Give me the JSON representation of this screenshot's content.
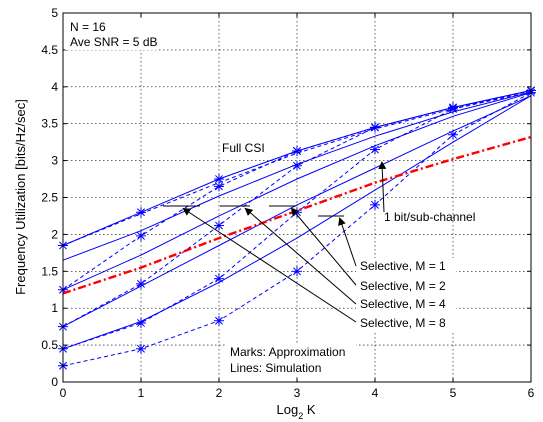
{
  "chart_data": {
    "type": "line",
    "xlabel": "Log",
    "xlabel_subscript": "2",
    "xlabel_suffix": " K",
    "ylabel": "Frequency Utilization [bits/Hz/sec]",
    "xlim": [
      0,
      6
    ],
    "ylim": [
      0,
      5
    ],
    "xticks": [
      0,
      1,
      2,
      3,
      4,
      5,
      6
    ],
    "yticks": [
      0,
      0.5,
      1,
      1.5,
      2,
      2.5,
      3,
      3.5,
      4,
      4.5,
      5
    ],
    "ytick_labels": [
      "0",
      "0.5",
      "1",
      "1.5",
      "2",
      "2.5",
      "3",
      "3.5",
      "4",
      "4.5",
      "5"
    ],
    "grid": true,
    "annotations": {
      "params_line1": "N = 16",
      "params_line2": "Ave SNR = 5 dB",
      "full_csi": "Full CSI",
      "one_bit": "1 bit/sub-channel",
      "sel_m1": "Selective, M = 1",
      "sel_m2": "Selective, M = 2",
      "sel_m4": "Selective, M = 4",
      "sel_m8": "Selective, M = 8",
      "marks_note": "Marks: Approximation",
      "lines_note": "Lines: Simulation"
    },
    "colors": {
      "series": "#0000ff",
      "one_bit": "#ff0000",
      "grid": "#000000"
    },
    "series": [
      {
        "x": [
          0,
          1,
          2,
          3,
          4,
          5,
          6
        ],
        "y": [
          1.85,
          2.3,
          2.75,
          3.13,
          3.45,
          3.72,
          3.95
        ],
        "style": "solid",
        "markers": true
      },
      {
        "x": [
          0,
          1,
          2,
          3,
          4,
          5,
          6
        ],
        "y": [
          1.85,
          2.28,
          2.7,
          3.1,
          3.43,
          3.7,
          3.93
        ],
        "style": "dashed",
        "markers": false
      },
      {
        "x": [
          0,
          1,
          2,
          3,
          4,
          5,
          6
        ],
        "y": [
          1.65,
          2.05,
          2.52,
          2.95,
          3.33,
          3.66,
          3.93
        ],
        "style": "solid",
        "markers": false
      },
      {
        "x": [
          0,
          1,
          2,
          3,
          4,
          5,
          6
        ],
        "y": [
          1.25,
          1.98,
          2.65,
          3.13,
          3.45,
          3.72,
          3.95
        ],
        "style": "dashed",
        "markers": true
      },
      {
        "x": [
          0,
          1,
          2,
          3,
          4,
          5,
          6
        ],
        "y": [
          1.25,
          1.72,
          2.25,
          2.75,
          3.2,
          3.6,
          3.92
        ],
        "style": "solid",
        "markers": false
      },
      {
        "x": [
          0,
          1,
          2,
          3,
          4,
          5,
          6
        ],
        "y": [
          0.75,
          1.33,
          2.12,
          2.93,
          3.45,
          3.72,
          3.95
        ],
        "style": "dashed",
        "markers": true
      },
      {
        "x": [
          0,
          1,
          2,
          3,
          4,
          5,
          6
        ],
        "y": [
          0.75,
          1.3,
          1.85,
          2.4,
          2.9,
          3.4,
          3.88
        ],
        "style": "solid",
        "markers": false
      },
      {
        "x": [
          0,
          1,
          2,
          3,
          4,
          5,
          6
        ],
        "y": [
          0.45,
          0.8,
          1.4,
          2.3,
          3.15,
          3.7,
          3.95
        ],
        "style": "dashed",
        "markers": true
      },
      {
        "x": [
          0,
          1,
          2,
          3,
          4,
          5,
          6
        ],
        "y": [
          0.45,
          0.82,
          1.35,
          1.95,
          2.6,
          3.25,
          3.88
        ],
        "style": "solid",
        "markers": false
      },
      {
        "x": [
          0,
          1,
          2,
          3,
          4,
          5,
          6
        ],
        "y": [
          0.22,
          0.45,
          0.83,
          1.5,
          2.4,
          3.35,
          3.92
        ],
        "style": "dashed",
        "markers": true
      },
      {
        "x": [
          0,
          1,
          2,
          3,
          4,
          5,
          6
        ],
        "y": [
          1.2,
          1.55,
          1.95,
          2.32,
          2.7,
          3.02,
          3.32
        ],
        "style": "dashdot",
        "markers": false,
        "highlight": true
      }
    ]
  }
}
